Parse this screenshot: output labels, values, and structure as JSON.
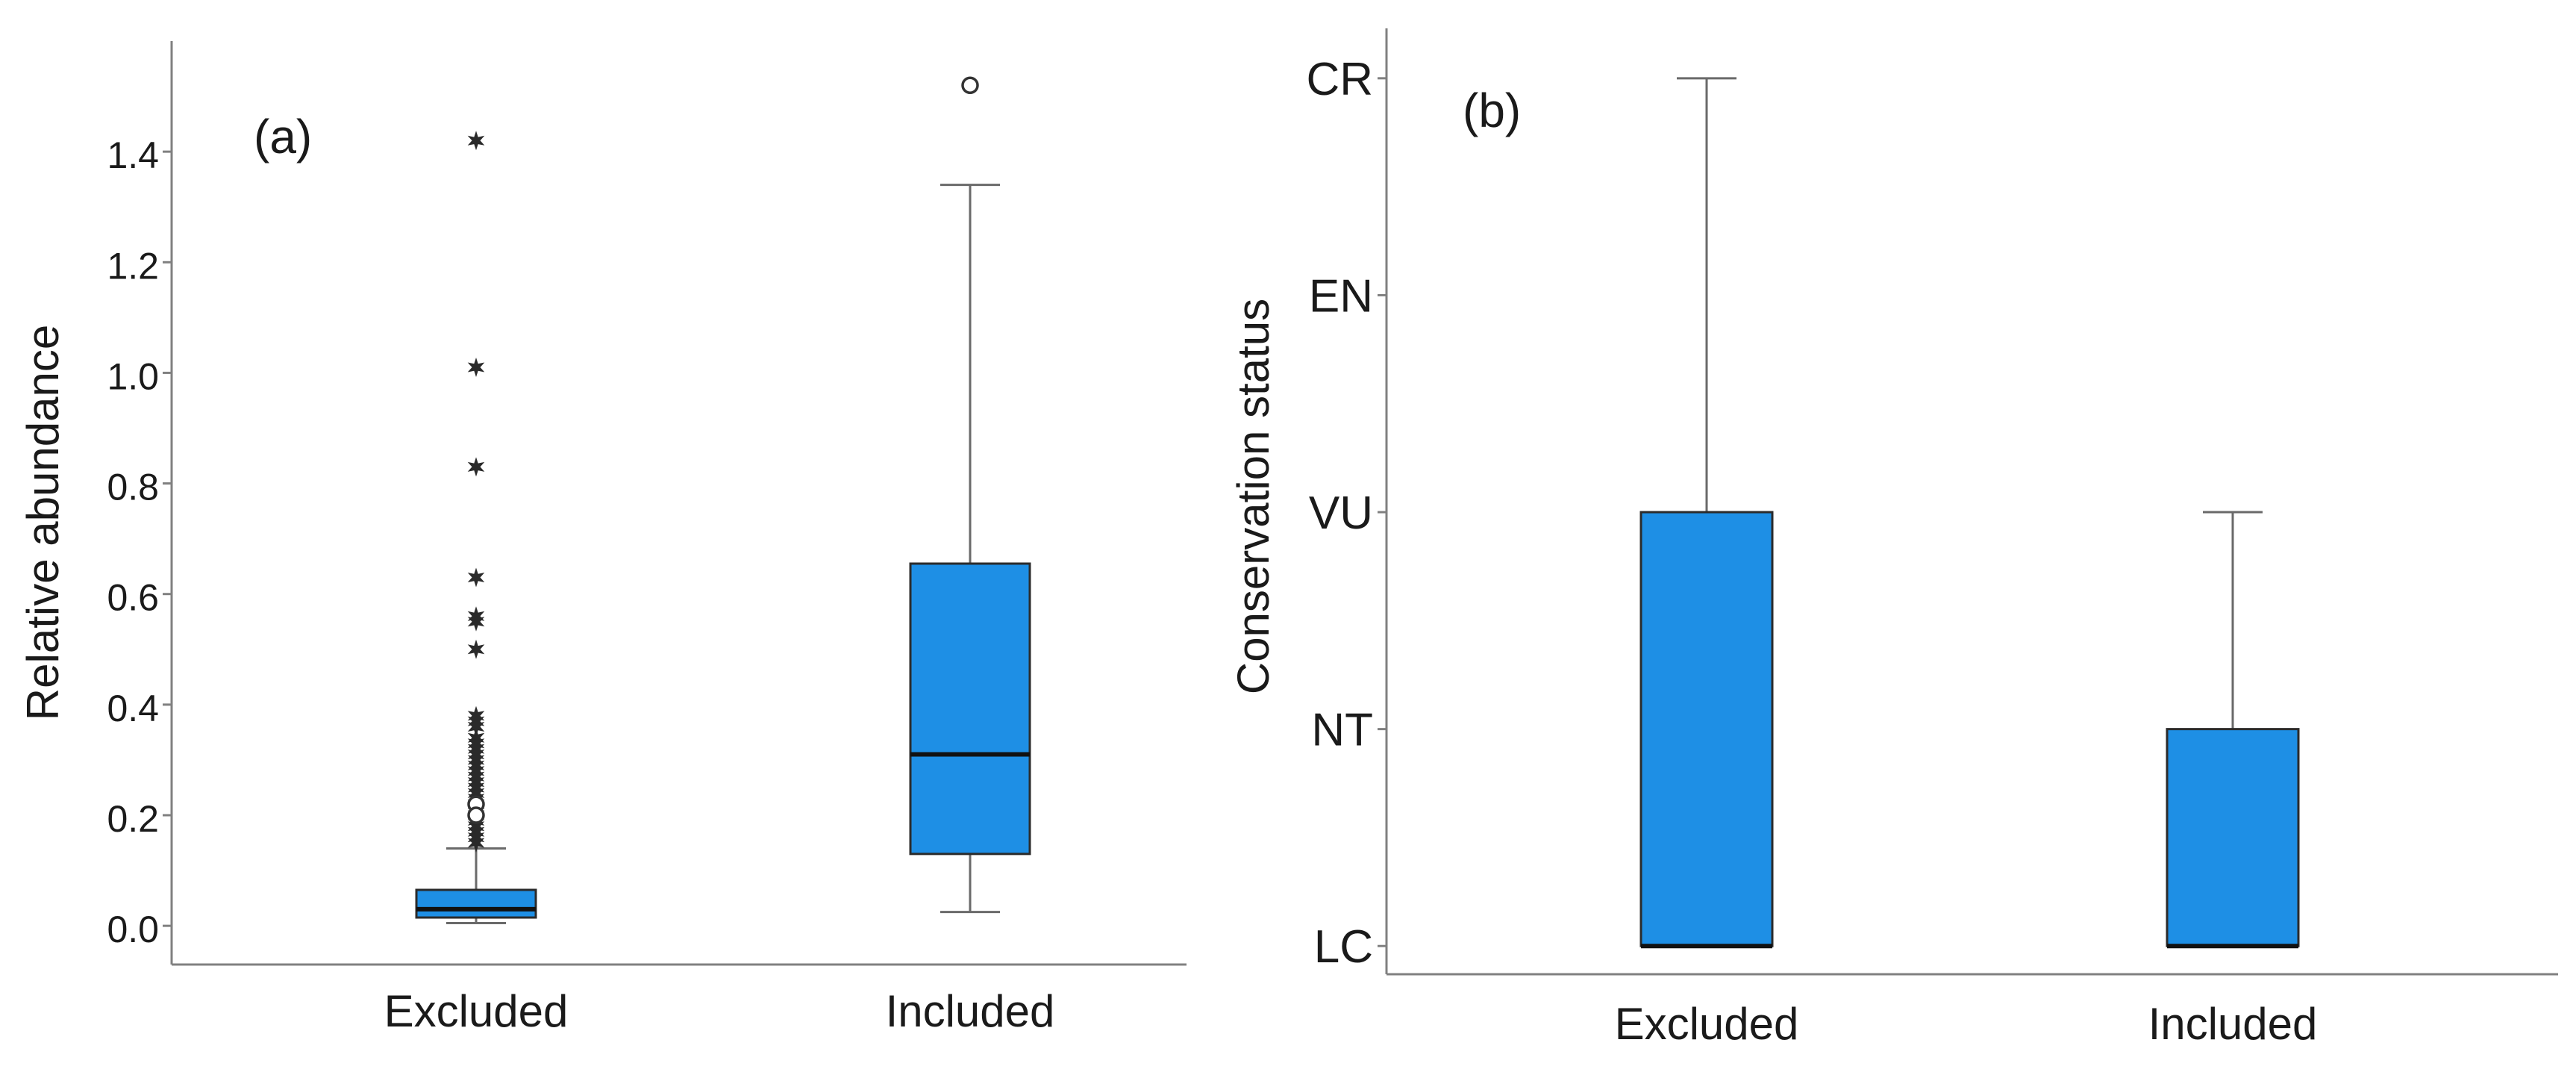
{
  "colors": {
    "box_fill": "#1E8FE5",
    "axis": "#808080",
    "text": "#1a1a1a"
  },
  "chart_data": [
    {
      "type": "box",
      "panel_label": "(a)",
      "xlabel": "",
      "ylabel": "Relative abundance",
      "ylim": [
        -0.07,
        1.6
      ],
      "yticks": [
        0.0,
        0.2,
        0.4,
        0.6,
        0.8,
        1.0,
        1.2,
        1.4
      ],
      "ytick_labels": [
        "0.0",
        "0.2",
        "0.4",
        "0.6",
        "0.8",
        "1.0",
        "1.2",
        "1.4"
      ],
      "categories": [
        "Excluded",
        "Included"
      ],
      "boxes": [
        {
          "category": "Excluded",
          "whisker_low": 0.005,
          "q1": 0.015,
          "median": 0.03,
          "q3": 0.065,
          "whisker_high": 0.14,
          "outliers_extreme": [
            1.42,
            1.01,
            0.83,
            0.63,
            0.56,
            0.55,
            0.5,
            0.38,
            0.37,
            0.36,
            0.34,
            0.33,
            0.32,
            0.31,
            0.3,
            0.29,
            0.28,
            0.27,
            0.26,
            0.25,
            0.24,
            0.23,
            0.22,
            0.21,
            0.2,
            0.19,
            0.18,
            0.17,
            0.16,
            0.15
          ],
          "outliers_mild": [
            0.22,
            0.2
          ]
        },
        {
          "category": "Included",
          "whisker_low": 0.025,
          "q1": 0.13,
          "median": 0.31,
          "q3": 0.655,
          "whisker_high": 1.34,
          "outliers_extreme": [],
          "outliers_mild": [
            1.52
          ]
        }
      ]
    },
    {
      "type": "box",
      "panel_label": "(b)",
      "xlabel": "",
      "ylabel": "Conservation status",
      "ylim": [
        -0.13,
        4.23
      ],
      "yticks": [
        0,
        1,
        2,
        3,
        4
      ],
      "ytick_labels": [
        "LC",
        "NT",
        "VU",
        "EN",
        "CR"
      ],
      "categories": [
        "Excluded",
        "Included"
      ],
      "boxes": [
        {
          "category": "Excluded",
          "whisker_low": 0,
          "q1": 0,
          "median": 0,
          "q3": 2,
          "whisker_high": 4
        },
        {
          "category": "Included",
          "whisker_low": 0,
          "q1": 0,
          "median": 0,
          "q3": 1,
          "whisker_high": 2
        }
      ]
    }
  ]
}
